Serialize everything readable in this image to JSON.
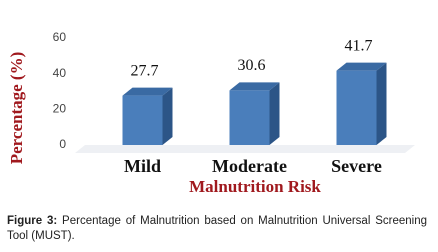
{
  "chart_data": {
    "type": "bar",
    "categories": [
      "Mild",
      "Moderate",
      "Severe"
    ],
    "values": [
      27.7,
      30.6,
      41.7
    ],
    "color": "#4a7ebb",
    "ylim": [
      0,
      60
    ],
    "yticks": [
      0,
      20,
      40,
      60
    ],
    "xlabel": "Malnutrition Risk",
    "ylabel": "Percentage (%)"
  },
  "caption": {
    "label": "Figure 3:",
    "text": "Percentage of Malnutrition based on Malnutrition Universal Screening Tool (MUST)."
  }
}
